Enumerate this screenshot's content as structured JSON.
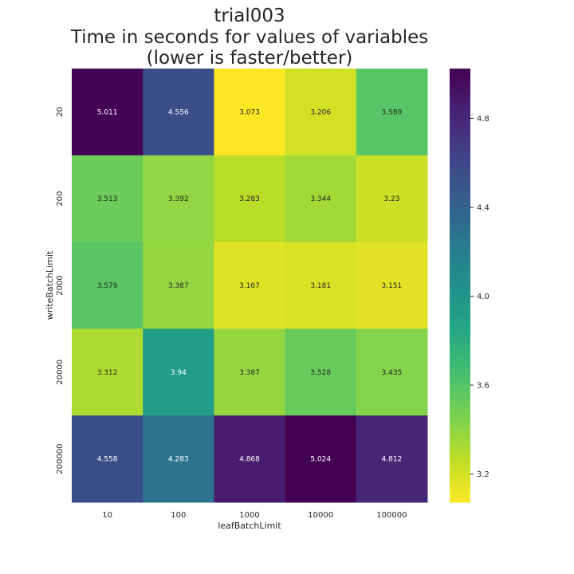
{
  "chart_data": {
    "type": "heatmap",
    "title_lines": [
      "trial003",
      "Time in seconds for values of variables",
      "(lower is faster/better)"
    ],
    "xlabel": "leafBatchLimit",
    "ylabel": "writeBatchLimit",
    "x_categories": [
      "10",
      "100",
      "1000",
      "10000",
      "100000"
    ],
    "y_categories": [
      "20",
      "200",
      "2000",
      "20000",
      "200000"
    ],
    "values": [
      [
        5.011,
        4.556,
        3.073,
        3.206,
        3.589
      ],
      [
        3.513,
        3.392,
        3.283,
        3.344,
        3.23
      ],
      [
        3.579,
        3.387,
        3.167,
        3.181,
        3.151
      ],
      [
        3.312,
        3.94,
        3.387,
        3.528,
        3.435
      ],
      [
        4.558,
        4.283,
        4.868,
        5.024,
        4.812
      ]
    ],
    "cell_labels": [
      [
        "5.011",
        "4.556",
        "3.073",
        "3.206",
        "3.589"
      ],
      [
        "3.513",
        "3.392",
        "3.283",
        "3.344",
        "3.23"
      ],
      [
        "3.579",
        "3.387",
        "3.167",
        "3.181",
        "3.151"
      ],
      [
        "3.312",
        "3.94",
        "3.387",
        "3.528",
        "3.435"
      ],
      [
        "4.558",
        "4.283",
        "4.868",
        "5.024",
        "4.812"
      ]
    ],
    "colormap": "viridis_r",
    "vmin": 3.073,
    "vmax": 5.024,
    "colorbar_ticks": [
      3.2,
      3.6,
      4.0,
      4.4,
      4.8
    ],
    "colorbar_tick_labels": [
      "3.2",
      "3.6",
      "4.0",
      "4.4",
      "4.8"
    ],
    "grid": false,
    "legend": "colorbar-right"
  }
}
